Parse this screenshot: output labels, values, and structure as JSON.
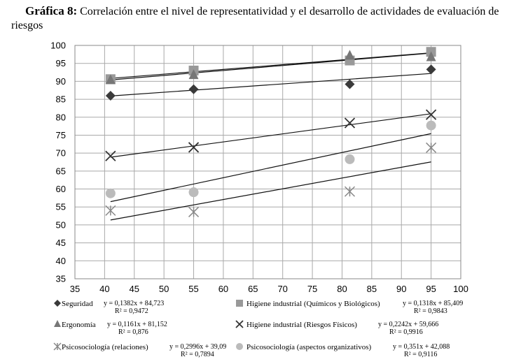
{
  "figure": {
    "lead": "Gráfica 8:",
    "text": "Correlación entre el nivel de representatividad y el desarrollo de actividades de evaluación de riesgos"
  },
  "chart_data": {
    "type": "scatter",
    "title": "Gráfica 8: Correlación entre el nivel de representatividad y el desarrollo de actividades de evaluación de riesgos",
    "xlabel": "",
    "ylabel": "",
    "xlim": [
      35,
      100
    ],
    "ylim": [
      35,
      100
    ],
    "xticks": [
      35,
      40,
      45,
      50,
      55,
      60,
      65,
      70,
      75,
      80,
      85,
      90,
      95,
      100
    ],
    "yticks": [
      35,
      40,
      45,
      50,
      55,
      60,
      65,
      70,
      75,
      80,
      85,
      90,
      95,
      100
    ],
    "grid": true,
    "legend_position": "bottom",
    "series": [
      {
        "name": "Seguridad",
        "marker": "diamond",
        "color": "#3a3a3a",
        "points": [
          [
            41,
            86
          ],
          [
            55,
            87.8
          ],
          [
            81.3,
            89.2
          ],
          [
            95,
            93.3
          ]
        ],
        "trendline": {
          "slope": 0.1382,
          "intercept": 84.723,
          "x_range": [
            41,
            95
          ]
        },
        "equation": "y = 0,1382x + 84,723",
        "r2": "R² = 0,9472"
      },
      {
        "name": "Higiene industrial (Químicos y Biológicos)",
        "marker": "square",
        "color": "#999999",
        "points": [
          [
            41,
            90.6
          ],
          [
            55,
            93
          ],
          [
            81.3,
            95.8
          ],
          [
            95,
            98.2
          ]
        ],
        "trendline": {
          "slope": 0.1318,
          "intercept": 85.409,
          "x_range": [
            41,
            95
          ]
        },
        "equation": "y = 0,1318x + 85,409",
        "r2": "R² = 0,9843"
      },
      {
        "name": "Ergonomía",
        "marker": "triangle",
        "color": "#777777",
        "points": [
          [
            41,
            90.4
          ],
          [
            55,
            91.8
          ],
          [
            81.3,
            97.2
          ],
          [
            95,
            96.8
          ]
        ],
        "trendline": {
          "slope": 0.1161,
          "intercept": 81.152,
          "x_range": [
            41,
            95
          ]
        },
        "equation": "y = 0,1161x + 81,152",
        "r2": "R² = 0,876"
      },
      {
        "name": "Higiene industrial (Riesgos Físicos)",
        "marker": "x",
        "color": "#333333",
        "points": [
          [
            41,
            69.2
          ],
          [
            55,
            71.6
          ],
          [
            81.3,
            78.4
          ],
          [
            95,
            80.7
          ]
        ],
        "trendline": {
          "slope": 0.2242,
          "intercept": 59.666,
          "x_range": [
            41,
            95
          ]
        },
        "equation": "y = 0,2242x + 59,666",
        "r2": "R² = 0,9916"
      },
      {
        "name": "Psicosociología (relaciones)",
        "marker": "asterisk",
        "color": "#888888",
        "points": [
          [
            41,
            54
          ],
          [
            55,
            53.6
          ],
          [
            81.3,
            59.3
          ],
          [
            95,
            71.5
          ]
        ],
        "trendline": {
          "slope": 0.2996,
          "intercept": 39.09,
          "x_range": [
            41,
            95
          ]
        },
        "equation": "y = 0,2996x + 39,09",
        "r2": "R² = 0,7894"
      },
      {
        "name": "Psicosociología (aspectos organizativos)",
        "marker": "circle",
        "color": "#bbbbbb",
        "points": [
          [
            41,
            58.8
          ],
          [
            55,
            59.1
          ],
          [
            81.3,
            68.3
          ],
          [
            95,
            77.7
          ]
        ],
        "trendline": {
          "slope": 0.351,
          "intercept": 42.088,
          "x_range": [
            41,
            95
          ]
        },
        "equation": "y = 0,351x + 42,088",
        "r2": "R² = 0,9116"
      }
    ]
  }
}
